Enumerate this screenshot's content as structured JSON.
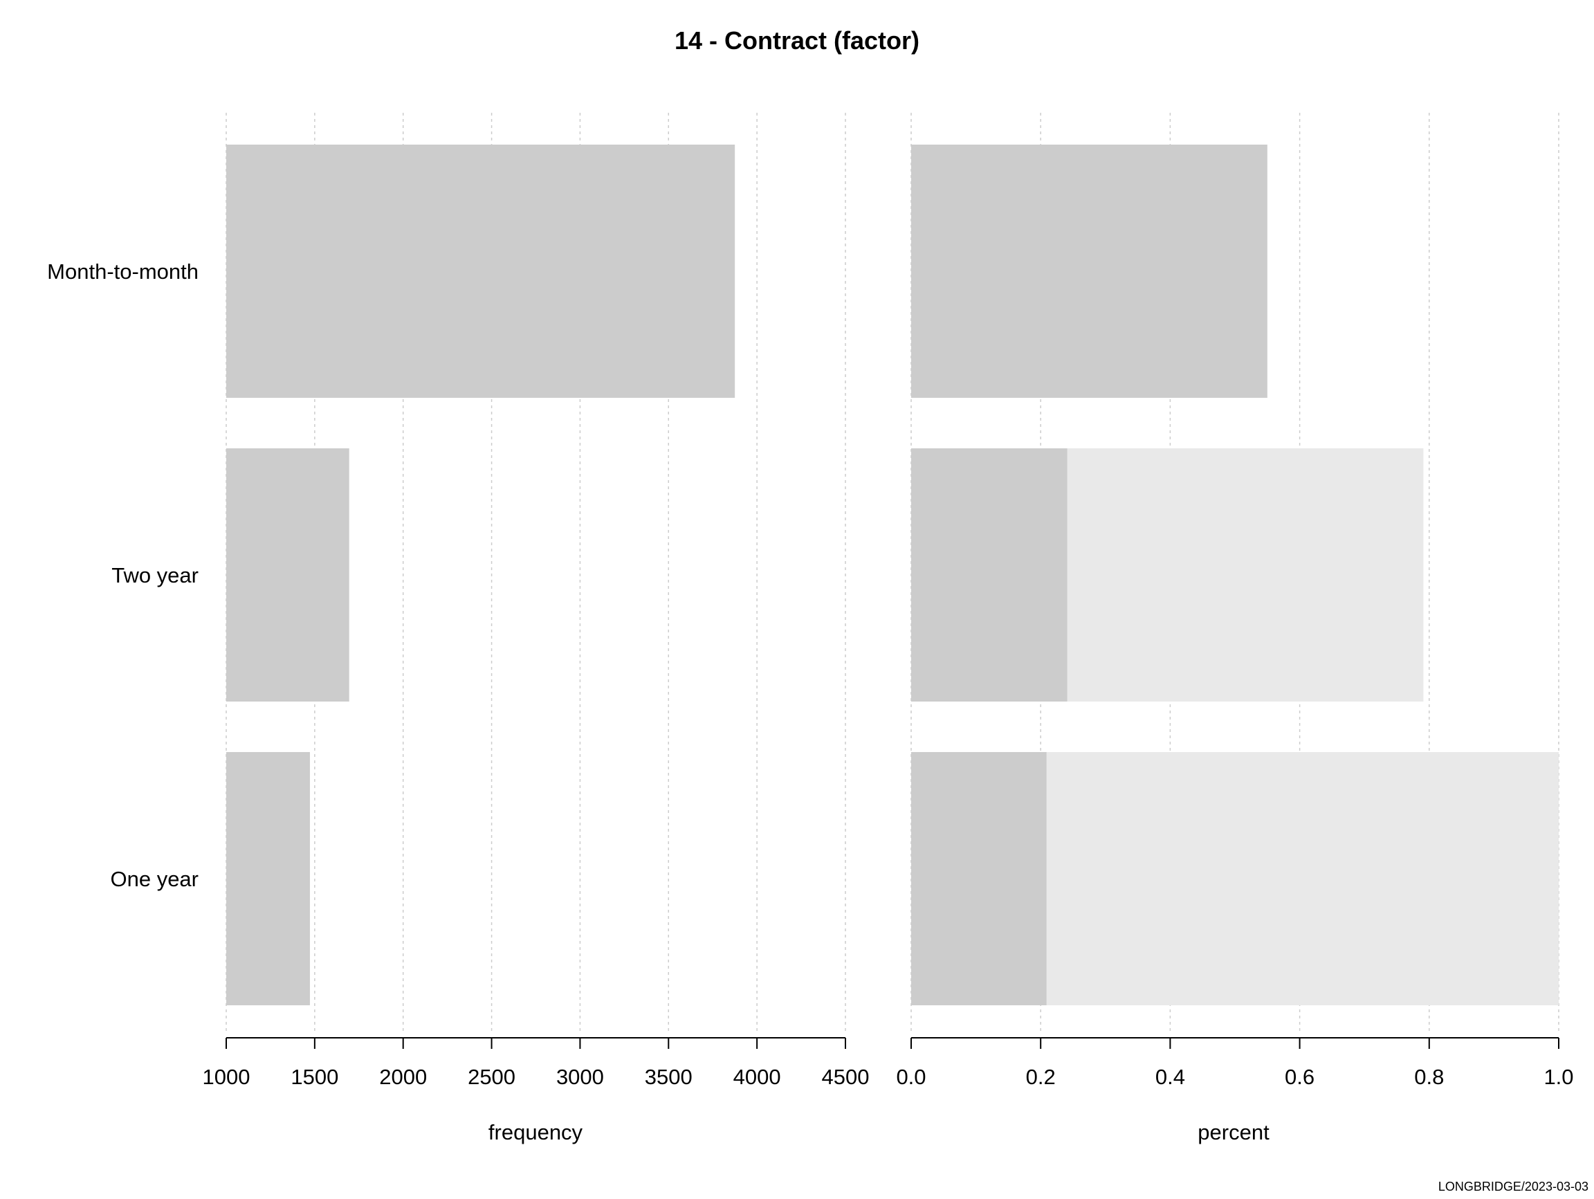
{
  "chart_data": {
    "title": "14 - Contract (factor)",
    "footer": "LONGBRIDGE/2023-03-03",
    "colors": {
      "bar": "#cccccc",
      "bar_background": "#e9e9e9",
      "grid": "#cccccc",
      "axis": "#000000"
    },
    "categories": [
      "Month-to-month",
      "Two year",
      "One year"
    ],
    "panels": [
      {
        "type": "bar",
        "orientation": "horizontal",
        "xlabel": "frequency",
        "xlim": [
          1000,
          4500
        ],
        "ticks": [
          "1000",
          "1500",
          "2000",
          "2500",
          "3000",
          "3500",
          "4000",
          "4500"
        ],
        "grid": true,
        "values": [
          3875,
          1695,
          1473
        ]
      },
      {
        "type": "bar",
        "orientation": "horizontal",
        "xlabel": "percent",
        "xlim": [
          0,
          1
        ],
        "ticks": [
          "0.0",
          "0.2",
          "0.4",
          "0.6",
          "0.8",
          "1.0"
        ],
        "grid": true,
        "values": [
          0.55,
          0.241,
          0.209
        ],
        "cumulative": [
          0.55,
          0.791,
          1.0
        ]
      }
    ]
  }
}
